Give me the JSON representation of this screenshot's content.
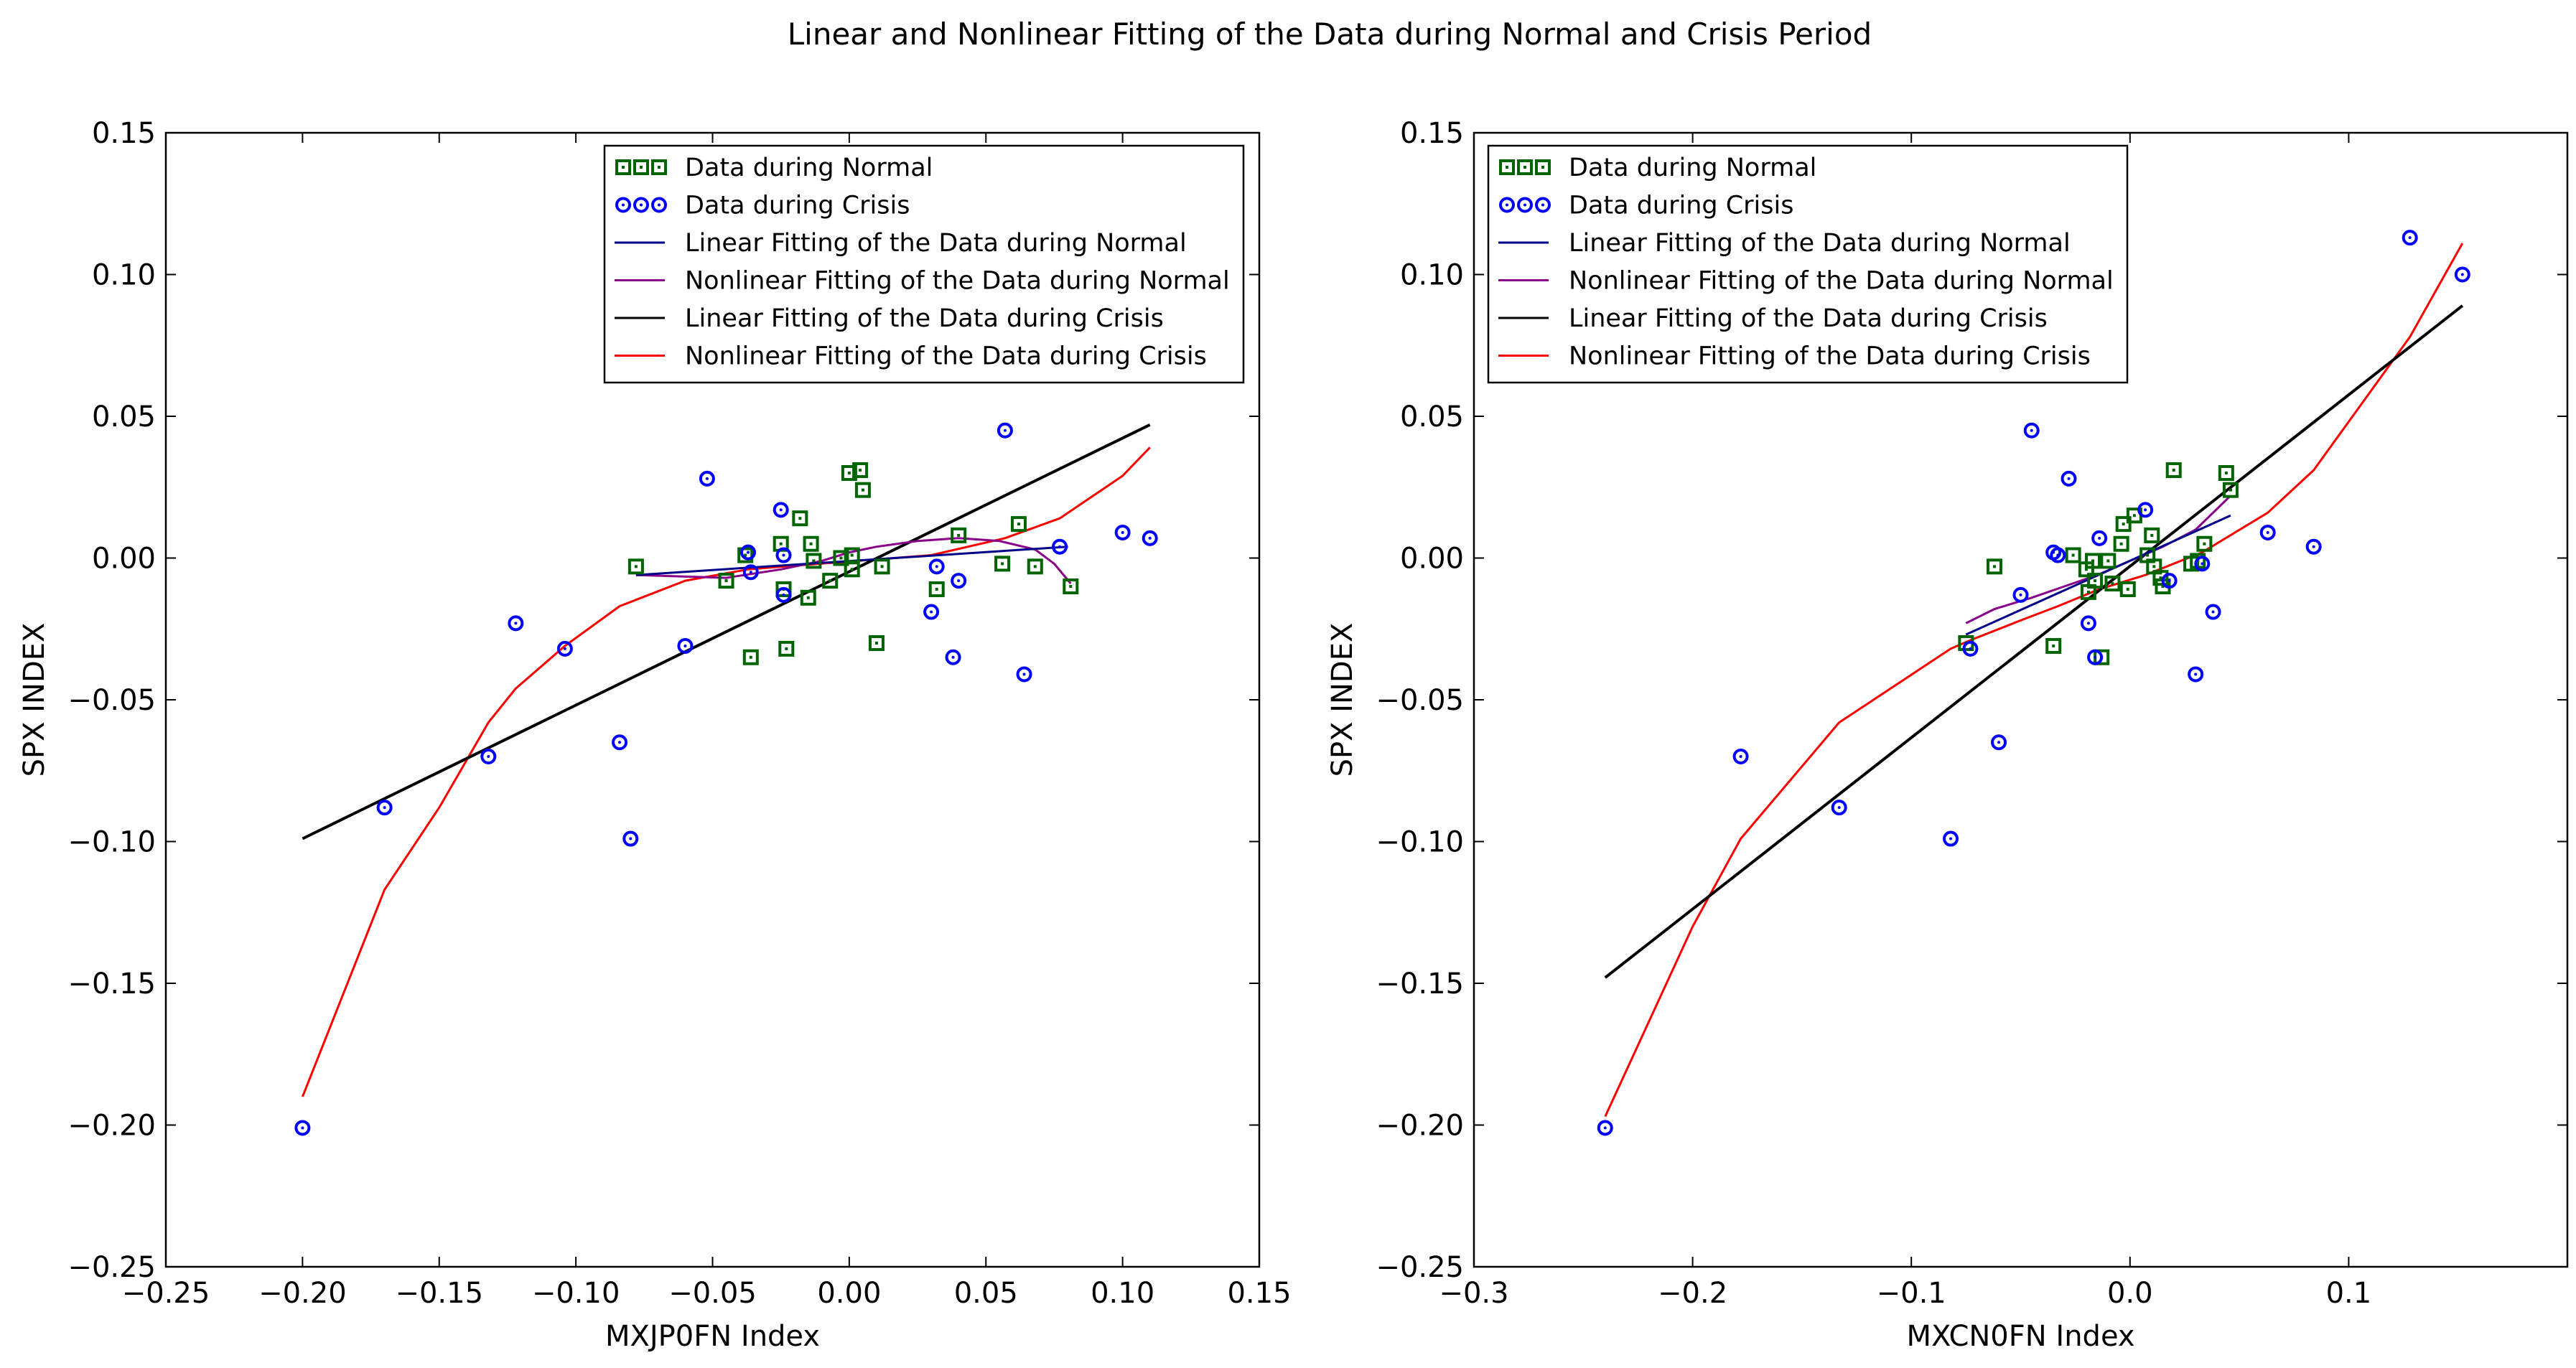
{
  "title": "Linear and Nonlinear Fitting of the Data during Normal and Crisis Period",
  "colors": {
    "normal_marker": "#006400",
    "crisis_marker": "#0000ff",
    "linear_normal": "#00008b",
    "nonlinear_normal": "#8b008b",
    "linear_crisis": "#000000",
    "nonlinear_crisis": "#ff0000"
  },
  "chart_data": [
    {
      "type": "scatter",
      "xlabel": "MXJP0FN Index",
      "ylabel": "SPX INDEX",
      "xlim": [
        -0.25,
        0.15
      ],
      "ylim": [
        -0.25,
        0.15
      ],
      "xticks": [
        -0.25,
        -0.2,
        -0.15,
        -0.1,
        -0.05,
        0.0,
        0.05,
        0.1,
        0.15
      ],
      "xtick_labels": [
        "−0.25",
        "−0.20",
        "−0.15",
        "−0.10",
        "−0.05",
        "0.00",
        "0.05",
        "0.10",
        "0.15"
      ],
      "yticks": [
        -0.25,
        -0.2,
        -0.15,
        -0.1,
        -0.05,
        0.0,
        0.05,
        0.1,
        0.15
      ],
      "ytick_labels": [
        "−0.25",
        "−0.20",
        "−0.15",
        "−0.10",
        "−0.05",
        "0.00",
        "0.05",
        "0.10",
        "0.15"
      ],
      "legend": {
        "position": "upper-center",
        "entries": [
          "Data during Normal",
          "Data during Crisis",
          "Linear Fitting of the Data during Normal",
          "Nonlinear Fitting of the Data during Normal",
          "Linear Fitting of the Data during Crisis",
          "Nonlinear Fitting of the Data during Crisis"
        ]
      },
      "series": [
        {
          "name": "Data during Normal",
          "kind": "scatter",
          "marker": "square",
          "color": "#006400",
          "points": [
            [
              -0.078,
              -0.003
            ],
            [
              -0.045,
              -0.008
            ],
            [
              -0.038,
              0.001
            ],
            [
              -0.036,
              -0.035
            ],
            [
              -0.025,
              0.005
            ],
            [
              -0.024,
              -0.011
            ],
            [
              -0.023,
              -0.032
            ],
            [
              -0.018,
              0.014
            ],
            [
              -0.015,
              -0.014
            ],
            [
              -0.014,
              0.005
            ],
            [
              -0.013,
              -0.001
            ],
            [
              -0.007,
              -0.008
            ],
            [
              -0.003,
              0.0
            ],
            [
              0.0,
              0.03
            ],
            [
              0.001,
              -0.004
            ],
            [
              0.001,
              0.001
            ],
            [
              0.004,
              0.031
            ],
            [
              0.005,
              0.024
            ],
            [
              0.01,
              -0.03
            ],
            [
              0.012,
              -0.003
            ],
            [
              0.032,
              -0.011
            ],
            [
              0.04,
              0.008
            ],
            [
              0.056,
              -0.002
            ],
            [
              0.062,
              0.012
            ],
            [
              0.068,
              -0.003
            ],
            [
              0.081,
              -0.01
            ]
          ]
        },
        {
          "name": "Data during Crisis",
          "kind": "scatter",
          "marker": "circle",
          "color": "#0000ff",
          "points": [
            [
              -0.2,
              -0.201
            ],
            [
              -0.17,
              -0.088
            ],
            [
              -0.132,
              -0.07
            ],
            [
              -0.122,
              -0.023
            ],
            [
              -0.104,
              -0.032
            ],
            [
              -0.084,
              -0.065
            ],
            [
              -0.08,
              -0.099
            ],
            [
              -0.06,
              -0.031
            ],
            [
              -0.052,
              0.028
            ],
            [
              -0.037,
              0.002
            ],
            [
              -0.036,
              -0.005
            ],
            [
              -0.025,
              0.017
            ],
            [
              -0.024,
              0.001
            ],
            [
              -0.024,
              -0.013
            ],
            [
              0.03,
              -0.019
            ],
            [
              0.032,
              -0.003
            ],
            [
              0.038,
              -0.035
            ],
            [
              0.04,
              -0.008
            ],
            [
              0.057,
              0.045
            ],
            [
              0.064,
              -0.041
            ],
            [
              0.077,
              0.004
            ],
            [
              0.1,
              0.009
            ],
            [
              0.11,
              0.007
            ]
          ]
        },
        {
          "name": "Linear Fitting of the Data during Normal",
          "kind": "line",
          "color": "#00008b",
          "points": [
            [
              -0.078,
              -0.006
            ],
            [
              0.08,
              0.004
            ]
          ]
        },
        {
          "name": "Nonlinear Fitting of the Data during Normal",
          "kind": "line",
          "color": "#8b008b",
          "points": [
            [
              -0.078,
              -0.006
            ],
            [
              -0.045,
              -0.007
            ],
            [
              -0.025,
              -0.004
            ],
            [
              -0.01,
              -0.001
            ],
            [
              0.0,
              0.002
            ],
            [
              0.01,
              0.004
            ],
            [
              0.025,
              0.006
            ],
            [
              0.04,
              0.007
            ],
            [
              0.055,
              0.006
            ],
            [
              0.068,
              0.003
            ],
            [
              0.075,
              -0.002
            ],
            [
              0.081,
              -0.009
            ]
          ]
        },
        {
          "name": "Linear Fitting of the Data during Crisis",
          "kind": "line",
          "color": "#000000",
          "points": [
            [
              -0.2,
              -0.099
            ],
            [
              0.11,
              0.047
            ]
          ]
        },
        {
          "name": "Nonlinear Fitting of the Data during Crisis",
          "kind": "line",
          "color": "#ff0000",
          "points": [
            [
              -0.2,
              -0.19
            ],
            [
              -0.17,
              -0.117
            ],
            [
              -0.15,
              -0.088
            ],
            [
              -0.132,
              -0.058
            ],
            [
              -0.122,
              -0.046
            ],
            [
              -0.104,
              -0.031
            ],
            [
              -0.084,
              -0.017
            ],
            [
              -0.06,
              -0.008
            ],
            [
              -0.037,
              -0.004
            ],
            [
              -0.024,
              -0.003
            ],
            [
              0.03,
              0.001
            ],
            [
              0.057,
              0.007
            ],
            [
              0.077,
              0.014
            ],
            [
              0.1,
              0.029
            ],
            [
              0.11,
              0.039
            ]
          ]
        }
      ]
    },
    {
      "type": "scatter",
      "xlabel": "MXCN0FN Index",
      "ylabel": "SPX INDEX",
      "xlim": [
        -0.3,
        0.2
      ],
      "ylim": [
        -0.25,
        0.15
      ],
      "xticks": [
        -0.3,
        -0.2,
        -0.1,
        0.0,
        0.1
      ],
      "xtick_labels": [
        "−0.3",
        "−0.2",
        "−0.1",
        "0.0",
        "0.1"
      ],
      "yticks": [
        -0.25,
        -0.2,
        -0.15,
        -0.1,
        -0.05,
        0.0,
        0.05,
        0.1,
        0.15
      ],
      "ytick_labels": [
        "−0.25",
        "−0.20",
        "−0.15",
        "−0.10",
        "−0.05",
        "0.00",
        "0.05",
        "0.10",
        "0.15"
      ],
      "legend": {
        "position": "upper-left",
        "entries": [
          "Data during Normal",
          "Data during Crisis",
          "Linear Fitting of the Data during Normal",
          "Nonlinear Fitting of the Data during Normal",
          "Linear Fitting of the Data during Crisis",
          "Nonlinear Fitting of the Data during Crisis"
        ]
      },
      "series": [
        {
          "name": "Data during Normal",
          "kind": "scatter",
          "marker": "square",
          "color": "#006400",
          "points": [
            [
              -0.075,
              -0.03
            ],
            [
              -0.062,
              -0.003
            ],
            [
              -0.035,
              -0.031
            ],
            [
              -0.026,
              0.001
            ],
            [
              -0.02,
              -0.004
            ],
            [
              -0.019,
              -0.012
            ],
            [
              -0.017,
              -0.001
            ],
            [
              -0.016,
              -0.008
            ],
            [
              -0.013,
              -0.035
            ],
            [
              -0.01,
              -0.001
            ],
            [
              -0.008,
              -0.009
            ],
            [
              -0.004,
              0.005
            ],
            [
              -0.003,
              0.012
            ],
            [
              -0.001,
              -0.011
            ],
            [
              0.002,
              0.015
            ],
            [
              0.008,
              0.001
            ],
            [
              0.01,
              0.008
            ],
            [
              0.011,
              -0.003
            ],
            [
              0.014,
              -0.007
            ],
            [
              0.015,
              -0.01
            ],
            [
              0.02,
              0.031
            ],
            [
              0.028,
              -0.002
            ],
            [
              0.031,
              -0.001
            ],
            [
              0.034,
              0.005
            ],
            [
              0.044,
              0.03
            ],
            [
              0.046,
              0.024
            ]
          ]
        },
        {
          "name": "Data during Crisis",
          "kind": "scatter",
          "marker": "circle",
          "color": "#0000ff",
          "points": [
            [
              -0.24,
              -0.201
            ],
            [
              -0.178,
              -0.07
            ],
            [
              -0.133,
              -0.088
            ],
            [
              -0.082,
              -0.099
            ],
            [
              -0.073,
              -0.032
            ],
            [
              -0.06,
              -0.065
            ],
            [
              -0.05,
              -0.013
            ],
            [
              -0.045,
              0.045
            ],
            [
              -0.035,
              0.002
            ],
            [
              -0.033,
              0.001
            ],
            [
              -0.028,
              0.028
            ],
            [
              -0.019,
              -0.023
            ],
            [
              -0.016,
              -0.035
            ],
            [
              -0.014,
              0.007
            ],
            [
              0.007,
              0.017
            ],
            [
              0.018,
              -0.008
            ],
            [
              0.03,
              -0.041
            ],
            [
              0.033,
              -0.002
            ],
            [
              0.038,
              -0.019
            ],
            [
              0.063,
              0.009
            ],
            [
              0.084,
              0.004
            ],
            [
              0.128,
              0.113
            ],
            [
              0.152,
              0.1
            ]
          ]
        },
        {
          "name": "Linear Fitting of the Data during Normal",
          "kind": "line",
          "color": "#00008b",
          "points": [
            [
              -0.075,
              -0.027
            ],
            [
              0.046,
              0.015
            ]
          ]
        },
        {
          "name": "Nonlinear Fitting of the Data during Normal",
          "kind": "line",
          "color": "#8b008b",
          "points": [
            [
              -0.075,
              -0.023
            ],
            [
              -0.062,
              -0.018
            ],
            [
              -0.045,
              -0.014
            ],
            [
              -0.03,
              -0.01
            ],
            [
              -0.015,
              -0.006
            ],
            [
              0.0,
              -0.001
            ],
            [
              0.015,
              0.004
            ],
            [
              0.03,
              0.01
            ],
            [
              0.046,
              0.022
            ]
          ]
        },
        {
          "name": "Linear Fitting of the Data during Crisis",
          "kind": "line",
          "color": "#000000",
          "points": [
            [
              -0.24,
              -0.148
            ],
            [
              0.152,
              0.089
            ]
          ]
        },
        {
          "name": "Nonlinear Fitting of the Data during Crisis",
          "kind": "line",
          "color": "#ff0000",
          "points": [
            [
              -0.24,
              -0.197
            ],
            [
              -0.2,
              -0.13
            ],
            [
              -0.178,
              -0.099
            ],
            [
              -0.133,
              -0.058
            ],
            [
              -0.082,
              -0.032
            ],
            [
              -0.073,
              -0.029
            ],
            [
              -0.05,
              -0.022
            ],
            [
              -0.033,
              -0.017
            ],
            [
              -0.014,
              -0.011
            ],
            [
              0.007,
              -0.006
            ],
            [
              0.033,
              0.002
            ],
            [
              0.063,
              0.016
            ],
            [
              0.084,
              0.031
            ],
            [
              0.128,
              0.078
            ],
            [
              0.152,
              0.111
            ]
          ]
        }
      ]
    }
  ]
}
